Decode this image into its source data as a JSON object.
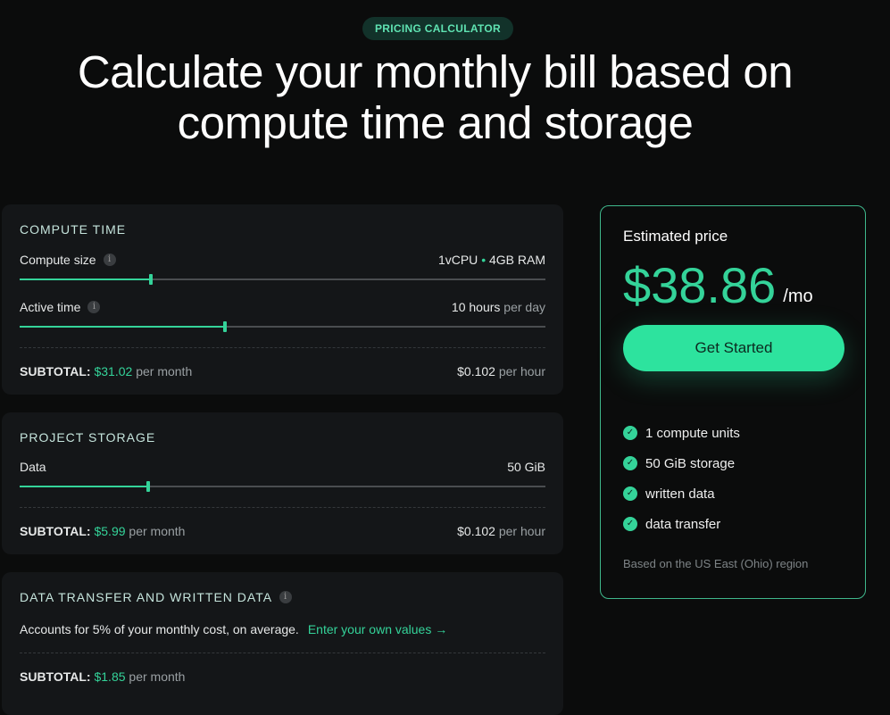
{
  "badge": "PRICING CALCULATOR",
  "title": "Calculate your monthly bill based on compute time and storage",
  "compute": {
    "title": "COMPUTE TIME",
    "size_label": "Compute size",
    "size_cpu": "1vCPU",
    "size_sep": "•",
    "size_ram": "4GB RAM",
    "size_slider": 0.25,
    "active_label": "Active time",
    "active_value": "10 hours",
    "active_unit": "per day",
    "active_slider": 0.39,
    "subtotal_label": "SUBTOTAL:",
    "subtotal": "$31.02",
    "subtotal_unit": "per month",
    "rate": "$0.102",
    "rate_unit": "per hour"
  },
  "storage": {
    "title": "PROJECT STORAGE",
    "data_label": "Data",
    "data_value": "50 GiB",
    "data_slider": 0.244,
    "subtotal_label": "SUBTOTAL:",
    "subtotal": "$5.99",
    "subtotal_unit": "per month",
    "rate": "$0.102",
    "rate_unit": "per hour"
  },
  "transfer": {
    "title": "DATA TRANSFER AND WRITTEN DATA",
    "desc": "Accounts for 5% of your monthly cost, on average.",
    "link": "Enter your own values →",
    "subtotal_label": "SUBTOTAL:",
    "subtotal": "$1.85",
    "subtotal_unit": "per month"
  },
  "estimate": {
    "title": "Estimated price",
    "price": "$38.86",
    "per": "/mo",
    "cta": "Get Started",
    "features": [
      "1 compute units",
      "50 GiB storage",
      "written data",
      "data transfer"
    ],
    "note": "Based on the US East (Ohio) region"
  },
  "colors": {
    "accent": "#34d399",
    "background": "#0b0c0c",
    "card": "#141618"
  }
}
